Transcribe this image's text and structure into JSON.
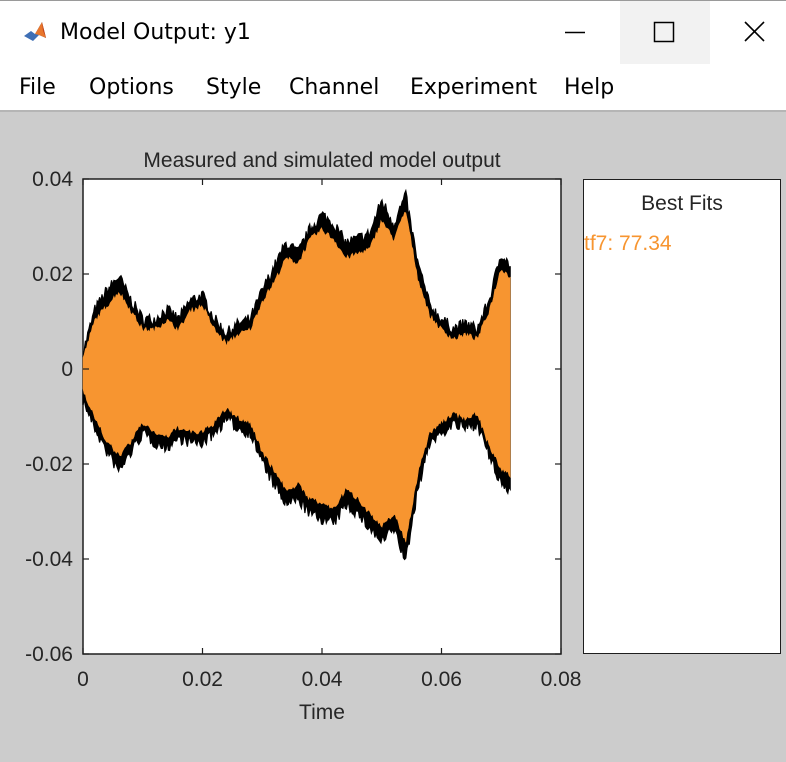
{
  "window": {
    "title": "Model Output: y1",
    "icon": "matlab-icon",
    "controls": {
      "minimize": "minimize-icon",
      "maximize": "maximize-icon",
      "close": "close-icon"
    }
  },
  "menubar": {
    "items": [
      {
        "label": "File"
      },
      {
        "label": "Options"
      },
      {
        "label": "Style"
      },
      {
        "label": "Channel"
      },
      {
        "label": "Experiment"
      },
      {
        "label": "Help"
      }
    ]
  },
  "best_fits": {
    "title": "Best Fits",
    "entries": [
      {
        "label": "tf7: 77.34",
        "color": "#f79530"
      }
    ]
  },
  "colors": {
    "measured": "#000000",
    "simulated": "#f79530",
    "background": "#cccccc"
  },
  "chart_data": {
    "type": "line",
    "title": "Measured and simulated model output",
    "xlabel": "Time",
    "ylabel": "",
    "xlim": [
      0,
      0.08
    ],
    "ylim": [
      -0.06,
      0.04
    ],
    "x_ticks": [
      "0",
      "0.02",
      "0.04",
      "0.06",
      "0.08"
    ],
    "y_ticks": [
      "0.04",
      "0.02",
      "0",
      "-0.02",
      "-0.04",
      "-0.06"
    ],
    "grid": false,
    "legend": "none",
    "series": [
      {
        "color": "#000000",
        "envelope_x": [
          0,
          0.002,
          0.004,
          0.006,
          0.008,
          0.01,
          0.012,
          0.014,
          0.016,
          0.018,
          0.02,
          0.022,
          0.024,
          0.026,
          0.028,
          0.03,
          0.032,
          0.034,
          0.036,
          0.038,
          0.04,
          0.042,
          0.044,
          0.046,
          0.048,
          0.05,
          0.052,
          0.054,
          0.056,
          0.058,
          0.06,
          0.062,
          0.064,
          0.066,
          0.068,
          0.07,
          0.0715
        ],
        "envelope_upper": [
          0.003,
          0.012,
          0.016,
          0.019,
          0.014,
          0.01,
          0.01,
          0.012,
          0.01,
          0.014,
          0.015,
          0.01,
          0.007,
          0.009,
          0.01,
          0.016,
          0.021,
          0.026,
          0.024,
          0.029,
          0.032,
          0.03,
          0.026,
          0.027,
          0.028,
          0.035,
          0.03,
          0.036,
          0.022,
          0.013,
          0.01,
          0.008,
          0.009,
          0.008,
          0.014,
          0.024,
          0.021
        ],
        "envelope_lower": [
          -0.006,
          -0.012,
          -0.017,
          -0.021,
          -0.017,
          -0.013,
          -0.015,
          -0.016,
          -0.014,
          -0.015,
          -0.015,
          -0.013,
          -0.01,
          -0.012,
          -0.013,
          -0.019,
          -0.024,
          -0.028,
          -0.027,
          -0.03,
          -0.031,
          -0.032,
          -0.028,
          -0.03,
          -0.033,
          -0.036,
          -0.033,
          -0.04,
          -0.025,
          -0.015,
          -0.013,
          -0.011,
          -0.012,
          -0.011,
          -0.018,
          -0.024,
          -0.025
        ]
      },
      {
        "name": "tf7",
        "color": "#f79530",
        "envelope_x": [
          0,
          0.002,
          0.004,
          0.006,
          0.008,
          0.01,
          0.012,
          0.014,
          0.016,
          0.018,
          0.02,
          0.022,
          0.024,
          0.026,
          0.028,
          0.03,
          0.032,
          0.034,
          0.036,
          0.038,
          0.04,
          0.042,
          0.044,
          0.046,
          0.048,
          0.05,
          0.052,
          0.054,
          0.056,
          0.058,
          0.06,
          0.062,
          0.064,
          0.066,
          0.068,
          0.07,
          0.0715
        ],
        "envelope_upper": [
          0.002,
          0.01,
          0.013,
          0.016,
          0.012,
          0.008,
          0.008,
          0.01,
          0.008,
          0.012,
          0.013,
          0.008,
          0.005,
          0.007,
          0.008,
          0.014,
          0.018,
          0.023,
          0.022,
          0.027,
          0.029,
          0.027,
          0.023,
          0.024,
          0.025,
          0.031,
          0.027,
          0.033,
          0.019,
          0.011,
          0.008,
          0.006,
          0.007,
          0.006,
          0.012,
          0.021,
          0.019
        ],
        "envelope_lower": [
          -0.004,
          -0.01,
          -0.015,
          -0.018,
          -0.015,
          -0.011,
          -0.013,
          -0.014,
          -0.012,
          -0.013,
          -0.013,
          -0.011,
          -0.008,
          -0.01,
          -0.011,
          -0.017,
          -0.021,
          -0.025,
          -0.024,
          -0.027,
          -0.028,
          -0.029,
          -0.025,
          -0.027,
          -0.03,
          -0.033,
          -0.03,
          -0.036,
          -0.022,
          -0.013,
          -0.011,
          -0.009,
          -0.01,
          -0.009,
          -0.016,
          -0.021,
          -0.022
        ]
      }
    ]
  }
}
